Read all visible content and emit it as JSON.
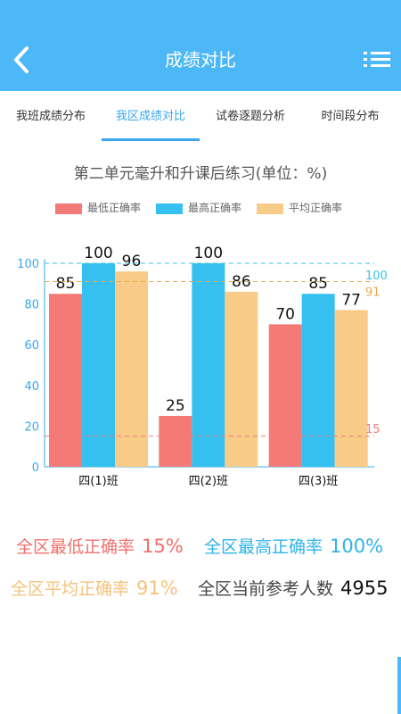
{
  "header": {
    "title": "成绩对比",
    "back_icon": "chevron-left-icon",
    "menu_icon": "list-menu-icon",
    "color": "#4db8f7"
  },
  "tabs": [
    {
      "label": "我班成绩分布",
      "active": false
    },
    {
      "label": "我区成绩对比",
      "active": true
    },
    {
      "label": "试卷逐题分析",
      "active": false
    },
    {
      "label": "时间段分布",
      "active": false
    }
  ],
  "chart_title": "第二单元毫升和升课后练习(单位：%)",
  "chart_data": {
    "type": "bar",
    "categories": [
      "四(1)班",
      "四(2)班",
      "四(3)班"
    ],
    "series": [
      {
        "name": "最低正确率",
        "values": [
          85,
          25,
          70
        ],
        "color": "#f47a78"
      },
      {
        "name": "最高正确率",
        "values": [
          100,
          100,
          85
        ],
        "color": "#35c0f0"
      },
      {
        "name": "平均正确率",
        "values": [
          96,
          86,
          77
        ],
        "color": "#f8cb88"
      }
    ],
    "ylim": [
      0,
      100
    ],
    "y_ticks": [
      "0",
      "20",
      "40",
      "60",
      "80",
      "100"
    ],
    "reference_lines": [
      {
        "value": 100,
        "label": "100",
        "color": "#35c0f0"
      },
      {
        "value": 91,
        "label": "91",
        "color": "#e8a94a"
      },
      {
        "value": 15,
        "label": "15",
        "color": "#f47a78"
      }
    ],
    "legend_position": "top"
  },
  "summary": {
    "min_label": "全区最低正确率",
    "min_value": "15%",
    "max_label": "全区最高正确率",
    "max_value": "100%",
    "avg_label": "全区平均正确率",
    "avg_value": "91%",
    "count_label": "全区当前参考人数",
    "count_value": "4955"
  }
}
